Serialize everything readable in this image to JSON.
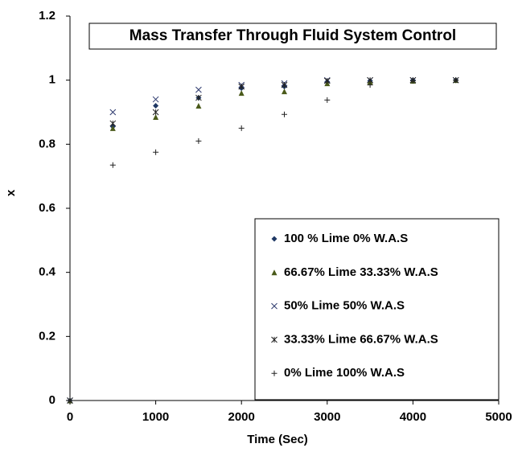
{
  "chart_data": {
    "type": "scatter",
    "title": "Mass Transfer Through Fluid System Control",
    "x_label": "Time (Sec)",
    "y_label": "x",
    "x": [
      0,
      500,
      1000,
      1500,
      2000,
      2500,
      3000,
      3500,
      4000,
      4500
    ],
    "series": [
      {
        "name": "100 % Lime 0% W.A.S",
        "color": "#1f3864",
        "marker": "diamond",
        "values": [
          0,
          0.855,
          0.92,
          0.945,
          0.975,
          0.98,
          0.995,
          0.998,
          1.0,
          1.0
        ]
      },
      {
        "name": "66.67% Lime 33.33% W.A.S",
        "color": "#4a5a1a",
        "marker": "triangle",
        "values": [
          0,
          0.85,
          0.885,
          0.92,
          0.96,
          0.965,
          0.99,
          0.995,
          0.998,
          1.0
        ]
      },
      {
        "name": "50% Lime 50% W.A.S",
        "color": "#2e3a6e",
        "marker": "x",
        "values": [
          0,
          0.9,
          0.94,
          0.97,
          0.985,
          0.99,
          1.0,
          1.0,
          1.0,
          1.0
        ]
      },
      {
        "name": "33.33% Lime 66.67% W.A.S",
        "color": "#222222",
        "marker": "star",
        "values": [
          0,
          0.865,
          0.9,
          0.945,
          0.98,
          0.985,
          0.998,
          1.0,
          1.0,
          1.0
        ]
      },
      {
        "name": "0% Lime 100% W.A.S",
        "color": "#222222",
        "marker": "plus",
        "values": [
          0,
          0.735,
          0.775,
          0.81,
          0.85,
          0.893,
          0.938,
          0.985,
          0.998,
          1.0
        ]
      }
    ],
    "xlim": [
      0,
      5000
    ],
    "xticks": [
      0,
      1000,
      2000,
      3000,
      4000,
      5000
    ],
    "ylim": [
      0,
      1.2
    ],
    "yticks": [
      0,
      0.2,
      0.4,
      0.6,
      0.8,
      1,
      1.2
    ],
    "grid": false,
    "legend": "lower right"
  }
}
